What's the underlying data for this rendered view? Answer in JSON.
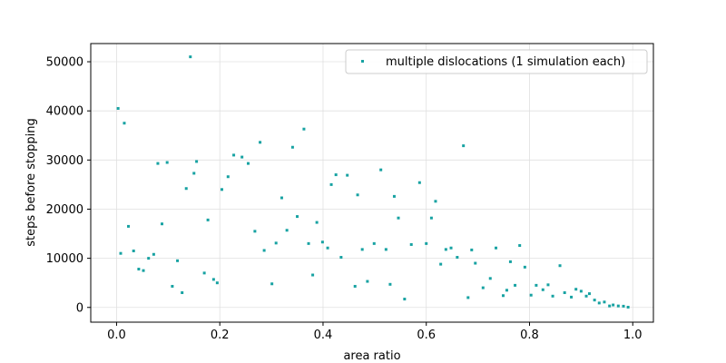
{
  "chart_data": {
    "type": "scatter",
    "title": "",
    "xlabel": "area ratio",
    "ylabel": "steps before stopping",
    "xlim": [
      -0.05,
      1.04
    ],
    "ylim": [
      -3000,
      53700
    ],
    "xticks": [
      0.0,
      0.2,
      0.4,
      0.6,
      0.8,
      1.0
    ],
    "xtick_labels": [
      "0.0",
      "0.2",
      "0.4",
      "0.6",
      "0.8",
      "1.0"
    ],
    "yticks": [
      0,
      10000,
      20000,
      30000,
      40000,
      50000
    ],
    "ytick_labels": [
      "0",
      "10000",
      "20000",
      "30000",
      "40000",
      "50000"
    ],
    "grid": true,
    "legend_position": "top-right",
    "series": [
      {
        "name": "multiple dislocations (1 simulation each)",
        "color": "#17a2a2",
        "points": [
          [
            0.003,
            40500
          ],
          [
            0.008,
            11000
          ],
          [
            0.015,
            37500
          ],
          [
            0.023,
            16500
          ],
          [
            0.033,
            11500
          ],
          [
            0.043,
            7800
          ],
          [
            0.052,
            7500
          ],
          [
            0.062,
            10000
          ],
          [
            0.072,
            10800
          ],
          [
            0.08,
            29300
          ],
          [
            0.088,
            17000
          ],
          [
            0.098,
            29500
          ],
          [
            0.108,
            4300
          ],
          [
            0.118,
            9500
          ],
          [
            0.127,
            3000
          ],
          [
            0.135,
            24200
          ],
          [
            0.143,
            51000
          ],
          [
            0.15,
            27300
          ],
          [
            0.155,
            29700
          ],
          [
            0.17,
            7000
          ],
          [
            0.177,
            17800
          ],
          [
            0.188,
            5700
          ],
          [
            0.195,
            5000
          ],
          [
            0.204,
            24000
          ],
          [
            0.216,
            26600
          ],
          [
            0.227,
            31000
          ],
          [
            0.243,
            30600
          ],
          [
            0.255,
            29300
          ],
          [
            0.268,
            15500
          ],
          [
            0.278,
            33600
          ],
          [
            0.286,
            11600
          ],
          [
            0.301,
            4800
          ],
          [
            0.309,
            13100
          ],
          [
            0.32,
            22300
          ],
          [
            0.33,
            15700
          ],
          [
            0.341,
            32600
          ],
          [
            0.35,
            18500
          ],
          [
            0.363,
            36300
          ],
          [
            0.372,
            13000
          ],
          [
            0.38,
            6600
          ],
          [
            0.388,
            17300
          ],
          [
            0.399,
            13300
          ],
          [
            0.409,
            12100
          ],
          [
            0.416,
            25000
          ],
          [
            0.425,
            27000
          ],
          [
            0.435,
            10200
          ],
          [
            0.447,
            26900
          ],
          [
            0.462,
            4300
          ],
          [
            0.467,
            22900
          ],
          [
            0.476,
            11800
          ],
          [
            0.486,
            5300
          ],
          [
            0.499,
            13000
          ],
          [
            0.512,
            28000
          ],
          [
            0.522,
            11800
          ],
          [
            0.53,
            4700
          ],
          [
            0.538,
            22600
          ],
          [
            0.546,
            18200
          ],
          [
            0.558,
            1700
          ],
          [
            0.571,
            12800
          ],
          [
            0.587,
            25400
          ],
          [
            0.6,
            13000
          ],
          [
            0.61,
            18200
          ],
          [
            0.618,
            21600
          ],
          [
            0.628,
            8800
          ],
          [
            0.638,
            11800
          ],
          [
            0.648,
            12100
          ],
          [
            0.66,
            10200
          ],
          [
            0.672,
            32900
          ],
          [
            0.681,
            2000
          ],
          [
            0.688,
            11700
          ],
          [
            0.695,
            9000
          ],
          [
            0.71,
            4000
          ],
          [
            0.724,
            5900
          ],
          [
            0.735,
            12100
          ],
          [
            0.749,
            2400
          ],
          [
            0.756,
            3500
          ],
          [
            0.763,
            9300
          ],
          [
            0.772,
            4500
          ],
          [
            0.781,
            12600
          ],
          [
            0.791,
            8200
          ],
          [
            0.803,
            2500
          ],
          [
            0.813,
            4500
          ],
          [
            0.826,
            3600
          ],
          [
            0.836,
            4600
          ],
          [
            0.845,
            2300
          ],
          [
            0.859,
            8500
          ],
          [
            0.868,
            3000
          ],
          [
            0.881,
            2100
          ],
          [
            0.89,
            3700
          ],
          [
            0.9,
            3300
          ],
          [
            0.91,
            2300
          ],
          [
            0.916,
            2800
          ],
          [
            0.926,
            1500
          ],
          [
            0.935,
            900
          ],
          [
            0.945,
            1100
          ],
          [
            0.955,
            300
          ],
          [
            0.962,
            500
          ],
          [
            0.972,
            300
          ],
          [
            0.982,
            250
          ],
          [
            0.991,
            50
          ]
        ]
      }
    ]
  }
}
